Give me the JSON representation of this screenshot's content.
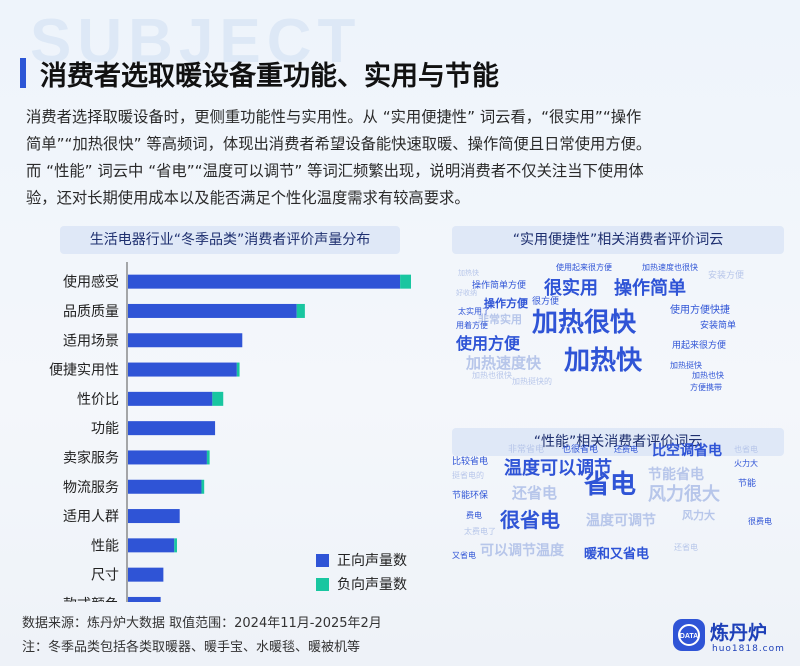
{
  "background_word": "SUBJECT",
  "title": "消费者选取暖设备重功能、实用与节能",
  "intro_lines": [
    "消费者选择取暖设备时，更侧重功能性与实用性。从 “实用便捷性” 词云看，“很实用”“操作",
    "简单”“加热很快” 等高频词，体现出消费者希望设备能快速取暖、操作简便且日常使用方便。",
    "而 “性能” 词云中 “省电”“温度可以调节” 等词汇频繁出现，说明消费者不仅关注当下使用体",
    "验，还对长期使用成本以及能否满足个性化温度需求有较高要求。"
  ],
  "bar_panel_title": "生活电器行业“冬季品类”消费者评价声量分布",
  "wordcloud1_title": "“实用便捷性”相关消费者评价词云",
  "wordcloud2_title": "“性能”相关消费者评价词云",
  "colors": {
    "positive": "#2f54d6",
    "negative": "#19c6a0",
    "accent": "#2c56d6"
  },
  "chart_data": {
    "type": "bar",
    "orientation": "horizontal",
    "stacked": true,
    "categories": [
      "使用感受",
      "品质质量",
      "适用场景",
      "便捷实用性",
      "性价比",
      "功能",
      "卖家服务",
      "物流服务",
      "适用人群",
      "性能",
      "尺寸",
      "款式颜色"
    ],
    "series": [
      {
        "name": "正向声量数",
        "values": [
          100,
          62,
          42,
          40,
          31,
          32,
          29,
          27,
          19,
          17,
          13,
          12
        ]
      },
      {
        "name": "负向声量数",
        "values": [
          4,
          3,
          0,
          1,
          4,
          0,
          1,
          1,
          0,
          1,
          0,
          0
        ]
      }
    ],
    "legend_position": "bottom-right",
    "grid": false
  },
  "wordcloud1": [
    {
      "text": "使用起来很方便",
      "color": "#2f54d6",
      "size": 8
    },
    {
      "text": "加热速度也很快",
      "color": "#2f54d6",
      "size": 8
    },
    {
      "text": "安装方便",
      "color": "#b7c6ea",
      "size": 9
    },
    {
      "text": "加热快",
      "color": "#b7c6ea",
      "size": 7
    },
    {
      "text": "操作简单方便",
      "color": "#2f54d6",
      "size": 9
    },
    {
      "text": "很实用",
      "color": "#2f54d6",
      "size": 18
    },
    {
      "text": "操作简单",
      "color": "#2f54d6",
      "size": 18
    },
    {
      "text": "好收纳",
      "color": "#b7c6ea",
      "size": 7
    },
    {
      "text": "操作方便",
      "color": "#2f54d6",
      "size": 11
    },
    {
      "text": "很方便",
      "color": "#2f54d6",
      "size": 9
    },
    {
      "text": "太实用了",
      "color": "#2f54d6",
      "size": 8
    },
    {
      "text": "非常实用",
      "color": "#b7c6ea",
      "size": 11
    },
    {
      "text": "用着方便",
      "color": "#2f54d6",
      "size": 8
    },
    {
      "text": "加热很快",
      "color": "#2f54d6",
      "size": 26
    },
    {
      "text": "使用方便快捷",
      "color": "#2f54d6",
      "size": 10
    },
    {
      "text": "安装简单",
      "color": "#2f54d6",
      "size": 9
    },
    {
      "text": "使用方便",
      "color": "#2f54d6",
      "size": 16
    },
    {
      "text": "用起来很方便",
      "color": "#2f54d6",
      "size": 9
    },
    {
      "text": "加热速度快",
      "color": "#b7c6ea",
      "size": 15
    },
    {
      "text": "加热快",
      "color": "#2f54d6",
      "size": 26
    },
    {
      "text": "加热挺快",
      "color": "#2f54d6",
      "size": 8
    },
    {
      "text": "加热也很快",
      "color": "#b7c6ea",
      "size": 8
    },
    {
      "text": "加热也快",
      "color": "#2f54d6",
      "size": 8
    },
    {
      "text": "加热挺快的",
      "color": "#b7c6ea",
      "size": 8
    },
    {
      "text": "方便携带",
      "color": "#2f54d6",
      "size": 8
    }
  ],
  "wordcloud2": [
    {
      "text": "非常省电",
      "color": "#b7c6ea",
      "size": 9
    },
    {
      "text": "也很省电",
      "color": "#2f54d6",
      "size": 9
    },
    {
      "text": "还费电",
      "color": "#2f54d6",
      "size": 8
    },
    {
      "text": "也省电",
      "color": "#b7c6ea",
      "size": 8
    },
    {
      "text": "比空调省电",
      "color": "#2f54d6",
      "size": 14
    },
    {
      "text": "火力大",
      "color": "#2f54d6",
      "size": 8
    },
    {
      "text": "比较省电",
      "color": "#2f54d6",
      "size": 9
    },
    {
      "text": "温度可以调节",
      "color": "#2f54d6",
      "size": 18
    },
    {
      "text": "挺省电的",
      "color": "#b7c6ea",
      "size": 8
    },
    {
      "text": "节能省电",
      "color": "#b7c6ea",
      "size": 14
    },
    {
      "text": "节能",
      "color": "#2f54d6",
      "size": 9
    },
    {
      "text": "节能环保",
      "color": "#2f54d6",
      "size": 9
    },
    {
      "text": "还省电",
      "color": "#b7c6ea",
      "size": 15
    },
    {
      "text": "省电",
      "color": "#2f54d6",
      "size": 26
    },
    {
      "text": "风力很大",
      "color": "#b7c6ea",
      "size": 18
    },
    {
      "text": "很省电",
      "color": "#2f54d6",
      "size": 20
    },
    {
      "text": "费电",
      "color": "#2f54d6",
      "size": 8
    },
    {
      "text": "温度可调节",
      "color": "#b7c6ea",
      "size": 14
    },
    {
      "text": "风力大",
      "color": "#b7c6ea",
      "size": 11
    },
    {
      "text": "太费电了",
      "color": "#b7c6ea",
      "size": 8
    },
    {
      "text": "很费电",
      "color": "#2f54d6",
      "size": 8
    },
    {
      "text": "可以调节温度",
      "color": "#b7c6ea",
      "size": 14
    },
    {
      "text": "还省电",
      "color": "#b7c6ea",
      "size": 8
    },
    {
      "text": "又省电",
      "color": "#2f54d6",
      "size": 8
    },
    {
      "text": "暖和又省电",
      "color": "#2f54d6",
      "size": 13
    }
  ],
  "footer": {
    "source": "数据来源：炼丹炉大数据    取值范围：2024年11月-2025年2月",
    "note": "注：冬季品类包括各类取暖器、暖手宝、水暖毯、暖被机等"
  },
  "brand": {
    "name": "炼丹炉",
    "url": "huo1818.com",
    "icon_text": "DATA"
  }
}
